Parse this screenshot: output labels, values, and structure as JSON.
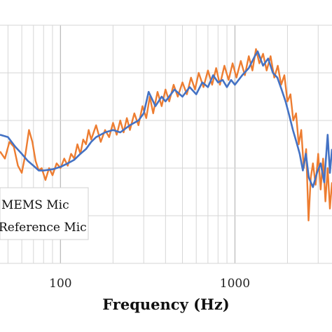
{
  "chart_data": {
    "type": "line",
    "xlabel": "Frequency (Hz)",
    "ylabel": "",
    "x_scale": "log",
    "xlim": [
      45,
      3600
    ],
    "ylim": [
      0,
      10
    ],
    "x_ticks": [
      {
        "value": 100,
        "label": "100"
      },
      {
        "value": 1000,
        "label": "1000"
      }
    ],
    "grid": true,
    "legend_position": "bottom-left",
    "series": [
      {
        "name": "MEMS Mic",
        "color": "#4472c4",
        "points": [
          [
            45,
            5.4
          ],
          [
            50,
            5.3
          ],
          [
            55,
            4.9
          ],
          [
            60,
            4.6
          ],
          [
            65,
            4.3
          ],
          [
            70,
            4.1
          ],
          [
            75,
            3.9
          ],
          [
            80,
            3.9
          ],
          [
            90,
            3.95
          ],
          [
            100,
            4.05
          ],
          [
            110,
            4.2
          ],
          [
            120,
            4.35
          ],
          [
            130,
            4.6
          ],
          [
            140,
            4.8
          ],
          [
            150,
            5.1
          ],
          [
            160,
            5.3
          ],
          [
            180,
            5.5
          ],
          [
            200,
            5.6
          ],
          [
            220,
            5.5
          ],
          [
            250,
            5.8
          ],
          [
            280,
            6.0
          ],
          [
            300,
            6.3
          ],
          [
            320,
            7.2
          ],
          [
            350,
            6.6
          ],
          [
            380,
            7.0
          ],
          [
            400,
            6.8
          ],
          [
            450,
            7.3
          ],
          [
            500,
            7.0
          ],
          [
            550,
            7.4
          ],
          [
            600,
            7.1
          ],
          [
            650,
            7.6
          ],
          [
            700,
            7.4
          ],
          [
            750,
            7.9
          ],
          [
            800,
            7.6
          ],
          [
            850,
            7.7
          ],
          [
            900,
            7.4
          ],
          [
            950,
            7.7
          ],
          [
            1000,
            7.5
          ],
          [
            1100,
            7.9
          ],
          [
            1200,
            8.2
          ],
          [
            1300,
            8.7
          ],
          [
            1350,
            8.9
          ],
          [
            1450,
            8.3
          ],
          [
            1550,
            8.6
          ],
          [
            1650,
            8.0
          ],
          [
            1750,
            7.8
          ],
          [
            1850,
            7.3
          ],
          [
            1950,
            6.8
          ],
          [
            2050,
            6.2
          ],
          [
            2150,
            5.6
          ],
          [
            2250,
            5.1
          ],
          [
            2350,
            4.6
          ],
          [
            2450,
            3.9
          ],
          [
            2550,
            4.6
          ],
          [
            2650,
            3.6
          ],
          [
            2800,
            3.2
          ],
          [
            2950,
            3.8
          ],
          [
            3100,
            4.2
          ],
          [
            3250,
            3.4
          ],
          [
            3400,
            5.4
          ],
          [
            3500,
            3.8
          ],
          [
            3600,
            4.8
          ]
        ]
      },
      {
        "name": "Reference Mic",
        "color": "#ed7d31",
        "points": [
          [
            45,
            4.7
          ],
          [
            48,
            4.4
          ],
          [
            51,
            5.1
          ],
          [
            54,
            4.9
          ],
          [
            57,
            4.1
          ],
          [
            60,
            3.8
          ],
          [
            63,
            4.6
          ],
          [
            66,
            5.6
          ],
          [
            69,
            5.1
          ],
          [
            72,
            4.3
          ],
          [
            75,
            3.9
          ],
          [
            78,
            4.0
          ],
          [
            82,
            3.5
          ],
          [
            86,
            4.0
          ],
          [
            90,
            3.7
          ],
          [
            95,
            4.2
          ],
          [
            100,
            4.0
          ],
          [
            105,
            4.4
          ],
          [
            110,
            4.1
          ],
          [
            115,
            4.6
          ],
          [
            120,
            4.4
          ],
          [
            125,
            5.0
          ],
          [
            130,
            4.6
          ],
          [
            135,
            5.2
          ],
          [
            140,
            5.0
          ],
          [
            145,
            5.6
          ],
          [
            150,
            5.2
          ],
          [
            160,
            5.8
          ],
          [
            170,
            5.1
          ],
          [
            180,
            5.6
          ],
          [
            190,
            5.3
          ],
          [
            200,
            5.9
          ],
          [
            210,
            5.4
          ],
          [
            220,
            6.0
          ],
          [
            230,
            5.5
          ],
          [
            240,
            6.1
          ],
          [
            250,
            5.6
          ],
          [
            265,
            6.3
          ],
          [
            280,
            5.8
          ],
          [
            295,
            6.6
          ],
          [
            310,
            6.1
          ],
          [
            325,
            7.0
          ],
          [
            340,
            6.3
          ],
          [
            360,
            7.2
          ],
          [
            380,
            6.6
          ],
          [
            400,
            7.3
          ],
          [
            420,
            6.8
          ],
          [
            445,
            7.5
          ],
          [
            470,
            7.0
          ],
          [
            500,
            7.6
          ],
          [
            530,
            7.1
          ],
          [
            560,
            7.8
          ],
          [
            590,
            7.3
          ],
          [
            620,
            8.0
          ],
          [
            660,
            7.4
          ],
          [
            700,
            8.1
          ],
          [
            740,
            7.5
          ],
          [
            780,
            8.2
          ],
          [
            820,
            7.5
          ],
          [
            870,
            8.3
          ],
          [
            920,
            7.7
          ],
          [
            970,
            8.4
          ],
          [
            1020,
            7.8
          ],
          [
            1080,
            8.5
          ],
          [
            1140,
            7.9
          ],
          [
            1200,
            8.7
          ],
          [
            1260,
            8.1
          ],
          [
            1320,
            9.0
          ],
          [
            1380,
            8.4
          ],
          [
            1450,
            8.8
          ],
          [
            1520,
            8.1
          ],
          [
            1600,
            8.7
          ],
          [
            1680,
            7.8
          ],
          [
            1760,
            8.3
          ],
          [
            1840,
            7.5
          ],
          [
            1920,
            7.9
          ],
          [
            2000,
            6.8
          ],
          [
            2080,
            7.1
          ],
          [
            2160,
            6.0
          ],
          [
            2240,
            6.3
          ],
          [
            2320,
            5.0
          ],
          [
            2400,
            5.6
          ],
          [
            2480,
            4.0
          ],
          [
            2560,
            4.8
          ],
          [
            2640,
            1.8
          ],
          [
            2720,
            3.6
          ],
          [
            2800,
            4.2
          ],
          [
            2900,
            3.3
          ],
          [
            3000,
            4.6
          ],
          [
            3100,
            3.1
          ],
          [
            3200,
            4.4
          ],
          [
            3300,
            2.6
          ],
          [
            3400,
            4.0
          ],
          [
            3500,
            2.3
          ],
          [
            3600,
            3.4
          ]
        ]
      }
    ]
  }
}
